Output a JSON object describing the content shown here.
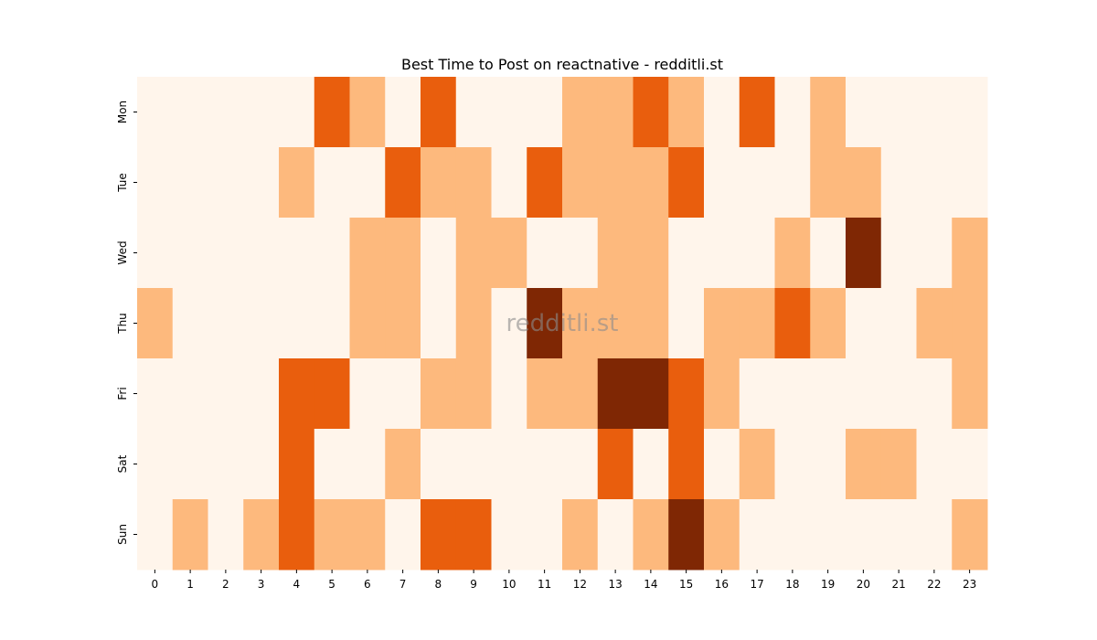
{
  "chart_data": {
    "type": "heatmap",
    "title": "Best Time to Post on reactnative - redditli.st",
    "x": [
      "0",
      "1",
      "2",
      "3",
      "4",
      "5",
      "6",
      "7",
      "8",
      "9",
      "10",
      "11",
      "12",
      "13",
      "14",
      "15",
      "16",
      "17",
      "18",
      "19",
      "20",
      "21",
      "22",
      "23"
    ],
    "y": [
      "Mon",
      "Tue",
      "Wed",
      "Thu",
      "Fri",
      "Sat",
      "Sun"
    ],
    "values": [
      [
        0,
        0,
        0,
        0,
        0,
        2,
        1,
        0,
        2,
        0,
        0,
        0,
        1,
        1,
        2,
        1,
        0,
        2,
        0,
        1,
        0,
        0,
        0,
        0
      ],
      [
        0,
        0,
        0,
        0,
        1,
        0,
        0,
        2,
        1,
        1,
        0,
        2,
        1,
        1,
        1,
        2,
        0,
        0,
        0,
        1,
        1,
        0,
        0,
        0
      ],
      [
        0,
        0,
        0,
        0,
        0,
        0,
        1,
        1,
        0,
        1,
        1,
        0,
        0,
        1,
        1,
        0,
        0,
        0,
        1,
        0,
        3,
        0,
        0,
        1
      ],
      [
        1,
        0,
        0,
        0,
        0,
        0,
        1,
        1,
        0,
        1,
        0,
        3,
        1,
        1,
        1,
        0,
        1,
        1,
        2,
        1,
        0,
        0,
        1,
        1
      ],
      [
        0,
        0,
        0,
        0,
        2,
        2,
        0,
        0,
        1,
        1,
        0,
        1,
        1,
        3,
        3,
        2,
        1,
        0,
        0,
        0,
        0,
        0,
        0,
        1
      ],
      [
        0,
        0,
        0,
        0,
        2,
        0,
        0,
        1,
        0,
        0,
        0,
        0,
        0,
        2,
        0,
        2,
        0,
        1,
        0,
        0,
        1,
        1,
        0,
        0
      ],
      [
        0,
        1,
        0,
        1,
        2,
        1,
        1,
        0,
        2,
        2,
        0,
        0,
        1,
        0,
        1,
        3,
        1,
        0,
        0,
        0,
        0,
        0,
        0,
        1
      ]
    ],
    "colors": [
      "#fff5eb",
      "#fdb97d",
      "#e95e0d",
      "#7f2704"
    ],
    "watermark": "redditli.st"
  }
}
